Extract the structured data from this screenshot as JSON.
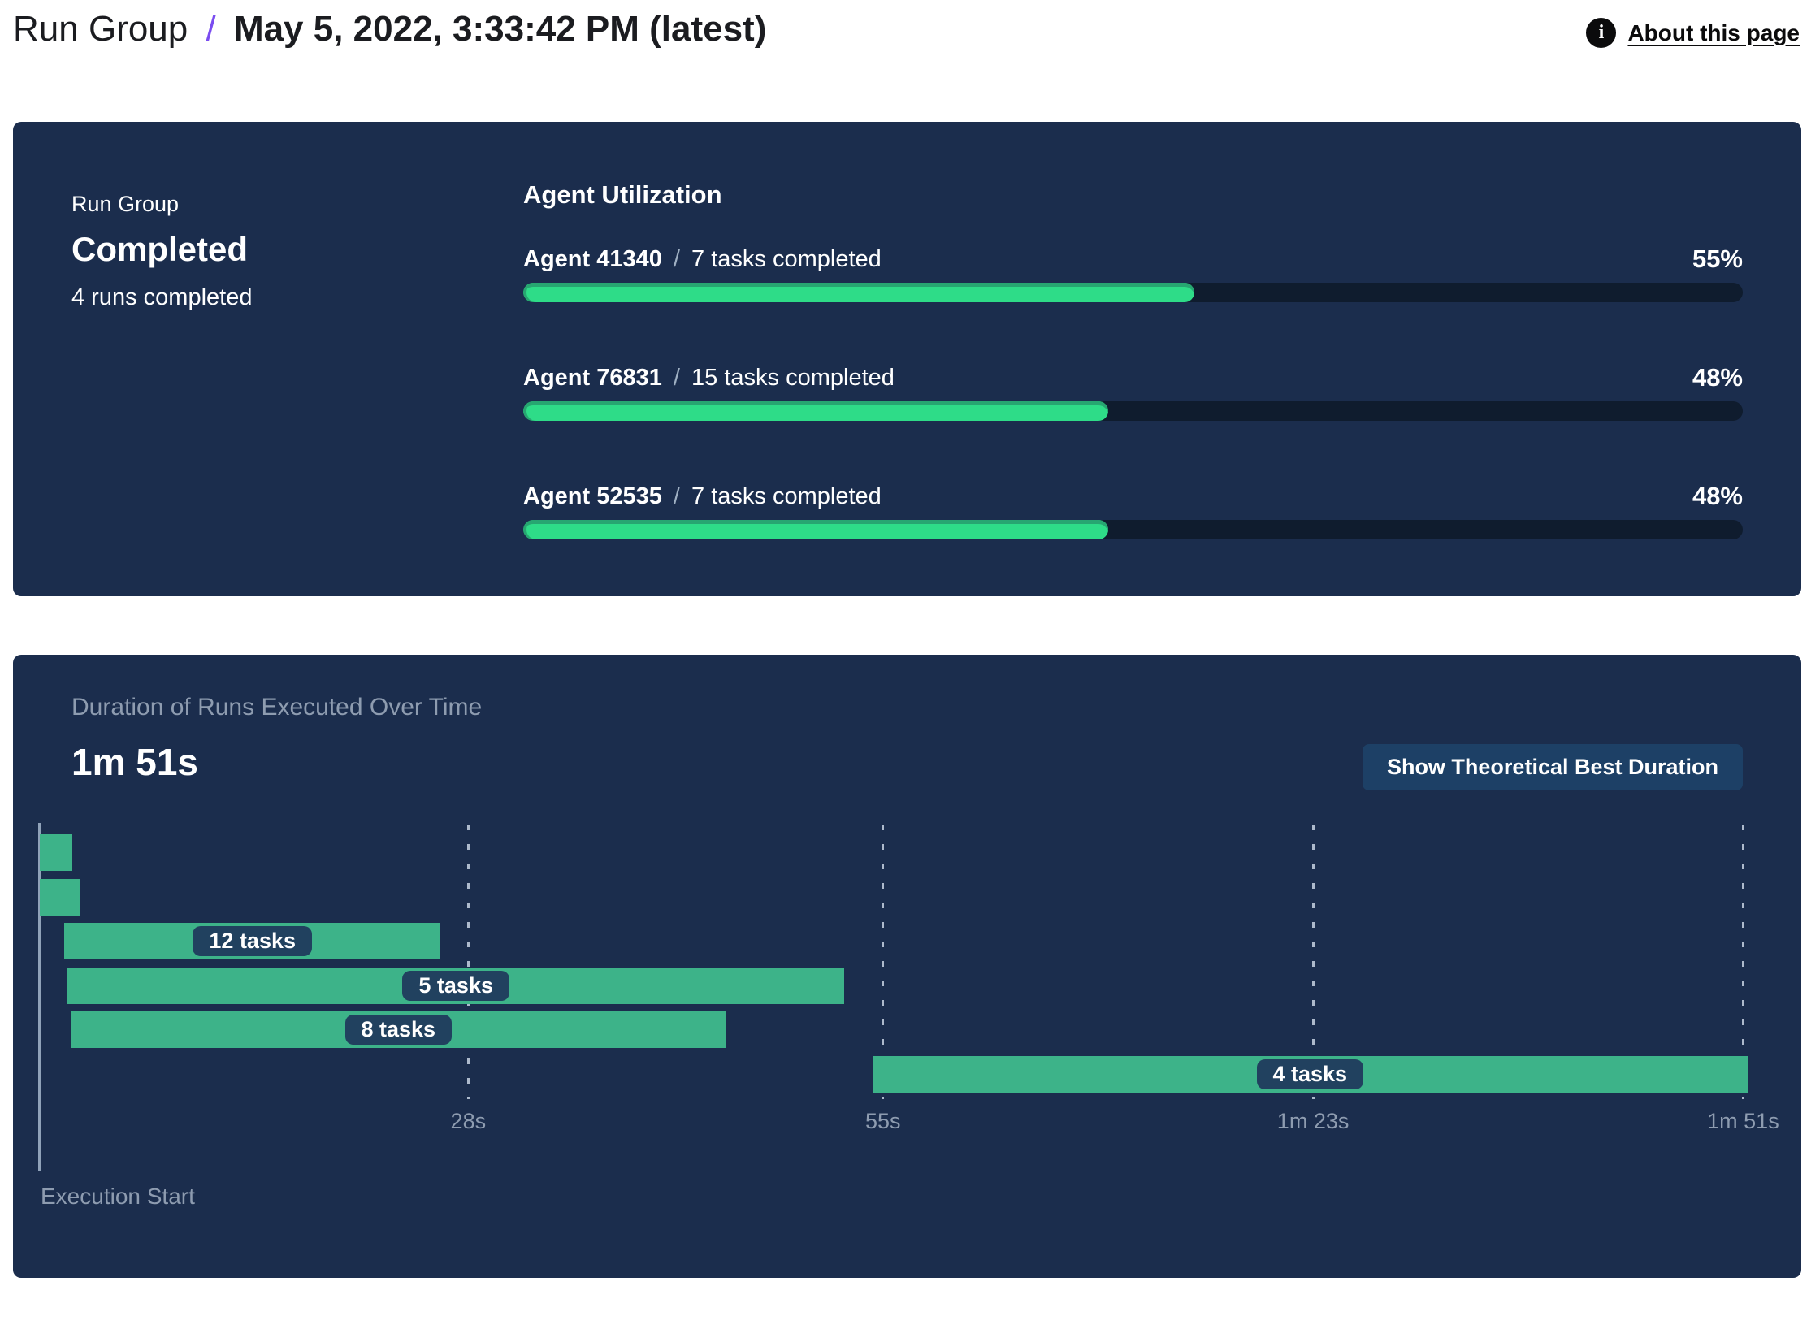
{
  "header": {
    "breadcrumb_root": "Run Group",
    "separator": "/",
    "title": "May 5, 2022, 3:33:42 PM (latest)",
    "about_link": "About this page",
    "info_icon": "i"
  },
  "summary": {
    "label": "Run Group",
    "status": "Completed",
    "detail": "4 runs completed"
  },
  "utilization": {
    "title": "Agent Utilization",
    "separator": "/",
    "agents": [
      {
        "name": "Agent 41340",
        "tasks": "7 tasks completed",
        "percent": 55
      },
      {
        "name": "Agent 76831",
        "tasks": "15 tasks completed",
        "percent": 48
      },
      {
        "name": "Agent 52535",
        "tasks": "7 tasks completed",
        "percent": 48
      }
    ]
  },
  "duration_panel": {
    "subtitle": "Duration of Runs Executed Over Time",
    "total": "1m 51s",
    "button": "Show Theoretical Best Duration",
    "execution_start": "Execution Start"
  },
  "chart_data": {
    "type": "gantt",
    "title": "Duration of Runs Executed Over Time",
    "total_duration_label": "1m 51s",
    "x_unit": "seconds",
    "x_min": 0,
    "x_max": 112.3,
    "grid": "dashed-vertical",
    "ticks": [
      {
        "t": 28,
        "label": "28s"
      },
      {
        "t": 55,
        "label": "55s"
      },
      {
        "t": 83,
        "label": "1m 23s"
      },
      {
        "t": 111,
        "label": "1m 51s"
      }
    ],
    "runs": [
      {
        "start": 0.1,
        "end": 2.2,
        "label": ""
      },
      {
        "start": 0.1,
        "end": 2.7,
        "label": ""
      },
      {
        "start": 1.7,
        "end": 26.2,
        "label": "12 tasks"
      },
      {
        "start": 1.9,
        "end": 52.5,
        "label": "5 tasks"
      },
      {
        "start": 2.1,
        "end": 44.8,
        "label": "8 tasks"
      },
      {
        "start": 54.3,
        "end": 111.3,
        "label": "4 tasks"
      }
    ],
    "x_axis_label": "Execution Start"
  },
  "colors": {
    "panel_bg": "#1b2d4d",
    "progress_track": "#0f1c2e",
    "progress_fill": "#2edc88",
    "progress_fill_shade": "#27a671",
    "gantt_bar": "#3db389",
    "pill_bg": "#21415f",
    "button_bg": "#1d4066",
    "muted_text": "#8e9cb0",
    "accent_purple": "#7a4cf0"
  }
}
